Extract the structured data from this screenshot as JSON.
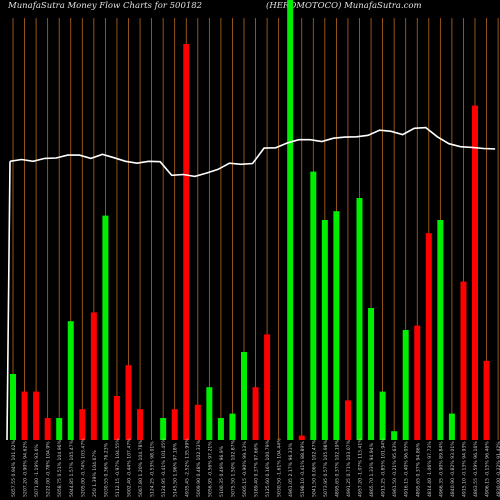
{
  "header": {
    "left": "MunafaSutra  Money Flow  Charts for 500182",
    "right": "(HEROMOTOCO) MunafaSutra.com"
  },
  "colors": {
    "background": "#000000",
    "vertical_grid": "#b8681c",
    "positive_bar": "#00ee00",
    "negative_bar": "#ff0000",
    "price_line": "#ffffff",
    "text": "#e0e0e0"
  },
  "chart_data": {
    "type": "bar",
    "title": "MunafaSutra  Money Flow  Charts for 500182 (HEROMOTOCO) MunafaSutra.com",
    "categories": [
      "5057.55 0.94% 101.62%",
      "5207.20 -0.90% 94.62%",
      "5071.80 -1.19% 93.6%",
      "5222.00 -0.78% 104.9%",
      "5058.75 0.51% 104.96%",
      "5044.85 1.57% 105.47%",
      "5205.00 -0.74% 103.47%",
      "250 1.39% 104.67%",
      "5030.55 0.36% 76.23%",
      "5112.15 -0.97% 104.55%",
      "5002.40 -0.44% 107.47%",
      "5067.80 1.20% 104.78%",
      "5124.25 -0.53% 98.01%",
      "5124.95 -0.41% 101.45%",
      "5145.50 1.96% 97.18%",
      "4935.45 -2.52% 135.99%",
      "5009.90 0.48% 102.33%",
      "5056.95 -0.56% 97.21%",
      "5100.35 0.49% 96.9%",
      "5075.50 1.50% 102.87%",
      "5005.15 -0.90% 99.13%",
      "5189.40 0.37% 97.66%",
      "5125.60 0.16% 100.79%",
      "5030.50 -1.61% 104.44%",
      "4961.05 2.17% 96.33%",
      "5198.10 -0.41% 88.89%",
      "5041.50 0.06% 102.47%",
      "5073.95 0.57% 105.98%",
      "4895.65 0.37% 102.19%",
      "4991.25 0.71% 103.07%",
      "4957.20 -1.07% 113.41%",
      "4865.70 1.33% 94.94%",
      "4913.25 -0.85% 101.94%",
      "4961.50 -0.21% 95.63%",
      "4916.15 -0.40% 96.05%",
      "4895.65 0.37% 94.86%",
      "4814.40 -1.06% 97.73%",
      "4966.35 -0.90% 89.84%",
      "4840.90 -0.82% 93.01%",
      "4915.10 -0.13% 94.93%",
      "4863.55 -0.59% 96.16%",
      "4906.15 -0.15% 96.46%",
      "4830.00 -0.22% 91.42%"
    ],
    "series": [
      {
        "color": "positive",
        "values": [
          15,
          0,
          0,
          0,
          5,
          27,
          0,
          0,
          51,
          0,
          0,
          0,
          0,
          5,
          0,
          0,
          0,
          12,
          5,
          6,
          20,
          0,
          0,
          0,
          100,
          0,
          61,
          50,
          52,
          0,
          55,
          30,
          11,
          2,
          25,
          0,
          0,
          50,
          6,
          0,
          0,
          0,
          0
        ]
      },
      {
        "color": "negative",
        "values": [
          0,
          11,
          11,
          5,
          0,
          0,
          7,
          29,
          0,
          10,
          17,
          7,
          0,
          0,
          7,
          90,
          8,
          0,
          0,
          0,
          0,
          12,
          24,
          0,
          0,
          1,
          0,
          0,
          0,
          9,
          0,
          0,
          0,
          0,
          0,
          26,
          47,
          0,
          0,
          36,
          76,
          18,
          0
        ]
      }
    ],
    "price_line": [
      5060,
      5065,
      5060,
      5068,
      5069,
      5077,
      5077,
      5068,
      5079,
      5070,
      5060,
      5055,
      5060,
      5059,
      5022,
      5024,
      5019,
      5028,
      5038,
      5055,
      5052,
      5054,
      5096,
      5097,
      5110,
      5119,
      5119,
      5114,
      5123,
      5126,
      5127,
      5131,
      5145,
      5142,
      5133,
      5150,
      5152,
      5127,
      5108,
      5100,
      5098,
      5095,
      5094
    ],
    "price_ylim": [
      4300,
      5500
    ],
    "ylim": [
      0,
      100
    ],
    "xlabel": "",
    "ylabel": "",
    "grid": "vertical",
    "legend": "none"
  }
}
